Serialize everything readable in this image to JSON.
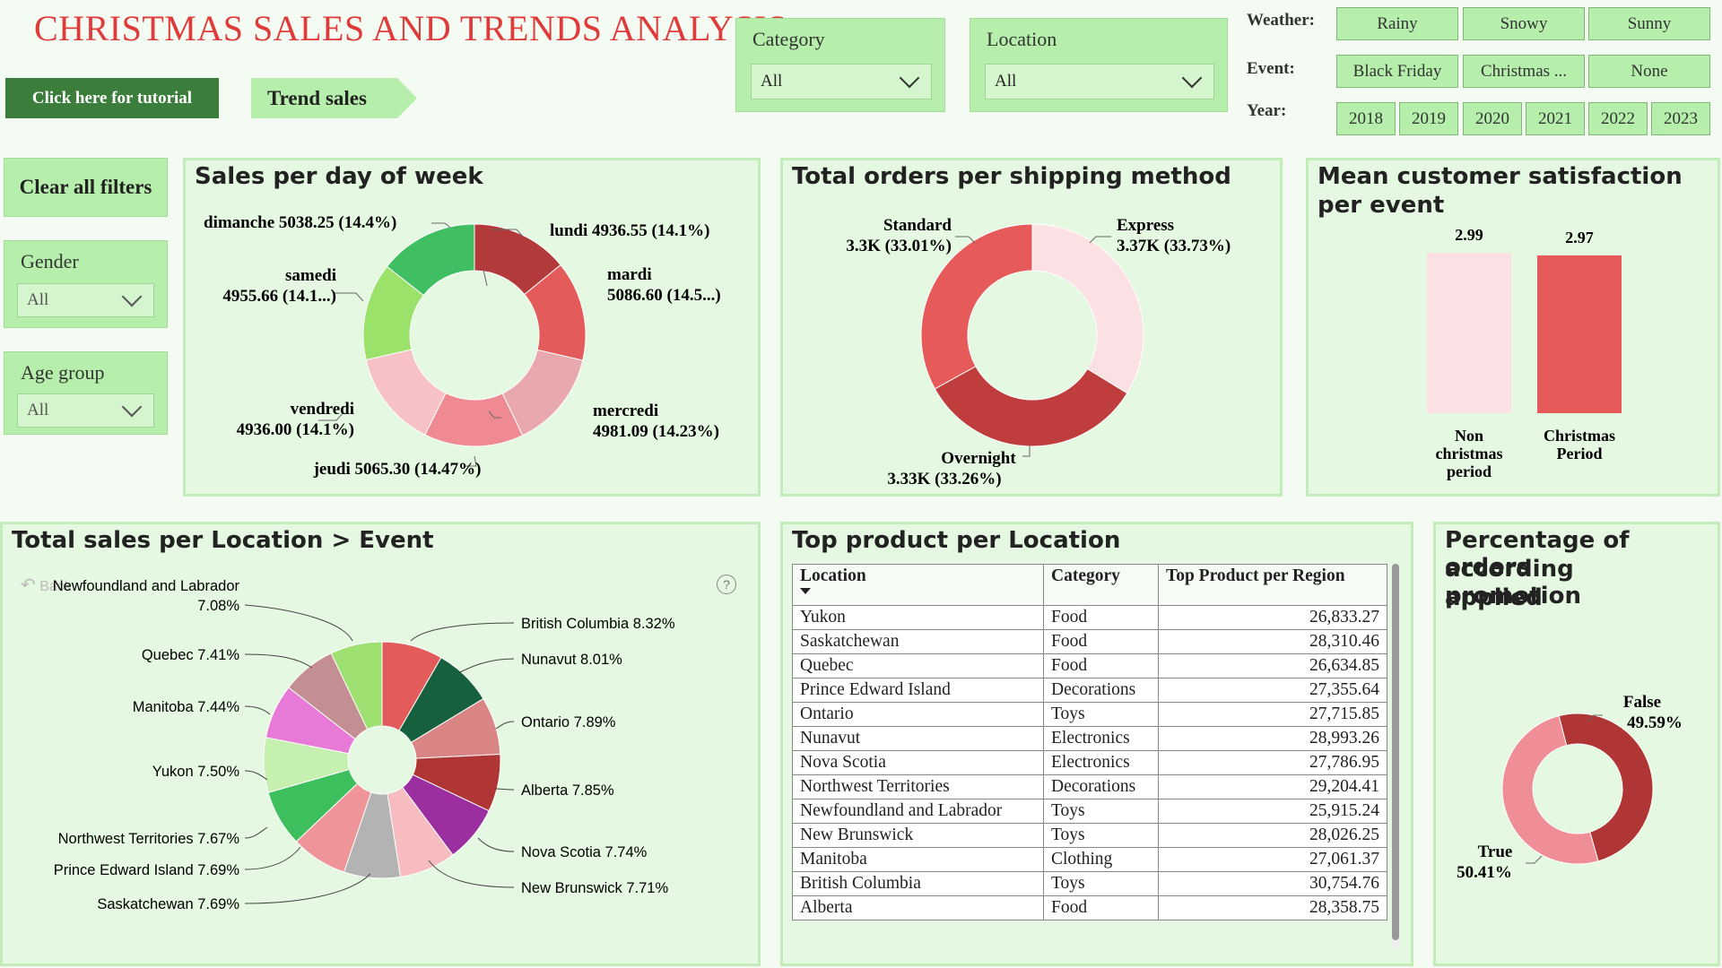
{
  "header": {
    "title": "CHRISTMAS SALES AND TRENDS ANALYSIS",
    "tutorial_label": "Click here for tutorial",
    "trend_label": "Trend sales",
    "clear_label": "Clear all filters"
  },
  "filters": {
    "category": {
      "label": "Category",
      "value": "All"
    },
    "location": {
      "label": "Location",
      "value": "All"
    },
    "gender": {
      "label": "Gender",
      "value": "All"
    },
    "age_group": {
      "label": "Age group",
      "value": "All"
    }
  },
  "slicers": {
    "weather": {
      "label": "Weather:",
      "options": [
        "Rainy",
        "Snowy",
        "Sunny"
      ]
    },
    "event": {
      "label": "Event:",
      "options": [
        "Black Friday",
        "Christmas ...",
        "None"
      ]
    },
    "year": {
      "label": "Year:",
      "options": [
        "2018",
        "2019",
        "2020",
        "2021",
        "2022",
        "2023"
      ]
    }
  },
  "panels": {
    "day_of_week": {
      "title": "Sales per day of week"
    },
    "shipping": {
      "title": "Total orders per shipping method"
    },
    "satisfaction": {
      "title_line1": "Mean customer satisfaction",
      "title_line2": "per event"
    },
    "location_event": {
      "title": "Total sales per Location > Event",
      "back_label": "Back",
      "help_icon": "?"
    },
    "top_product": {
      "title": "Top product per Location"
    },
    "promotion": {
      "title_line1": "Percentage of orders",
      "title_line2": "according promotion",
      "title_line3": "applied"
    }
  },
  "colors": {
    "accent_red": "#e03b3b",
    "panel_bg": "#e5f8e1",
    "slicer_bg": "#b5efab",
    "dark_green": "#3b7d3b"
  },
  "chart_data": [
    {
      "type": "pie",
      "title": "Sales per day of week",
      "donut": true,
      "slices": [
        {
          "label": "lundi",
          "value": 4936.55,
          "text": "lundi 4936.55 (14.1%)",
          "color": "#b23a3a"
        },
        {
          "label": "mardi",
          "value": 5086.6,
          "text_line1": "mardi",
          "text_line2": "5086.60 (14.5...)",
          "color": "#e45b5b"
        },
        {
          "label": "mercredi",
          "value": 4981.09,
          "text_line1": "mercredi",
          "text_line2": "4981.09 (14.23%)",
          "color": "#e8a8ad"
        },
        {
          "label": "jeudi",
          "value": 5065.3,
          "text": "jeudi 5065.30 (14.47%)",
          "color": "#ef8a93"
        },
        {
          "label": "vendredi",
          "value": 4936.0,
          "text_line1": "vendredi",
          "text_line2": "4936.00 (14.1%)",
          "color": "#f6c2c6"
        },
        {
          "label": "samedi",
          "value": 4955.66,
          "text_line1": "samedi",
          "text_line2": "4955.66 (14.1...)",
          "color": "#9be26a"
        },
        {
          "label": "dimanche",
          "value": 5038.25,
          "text": "dimanche 5038.25 (14.4%)",
          "color": "#3fbf62"
        }
      ]
    },
    {
      "type": "pie",
      "title": "Total orders per shipping method",
      "donut": true,
      "slices": [
        {
          "label": "Express",
          "value": 33.73,
          "text_line1": "Express",
          "text_line2": "3.37K (33.73%)",
          "color": "#fbe1e3"
        },
        {
          "label": "Overnight",
          "value": 33.26,
          "text_line1": "Overnight",
          "text_line2": "3.33K (33.26%)",
          "color": "#bf3d3d"
        },
        {
          "label": "Standard",
          "value": 33.01,
          "text_line1": "Standard",
          "text_line2": "3.3K (33.01%)",
          "color": "#e65a5a"
        }
      ]
    },
    {
      "type": "bar",
      "title": "Mean customer satisfaction per event",
      "categories": [
        "Non christmas period",
        "Christmas Period"
      ],
      "category_lines": [
        [
          "Non",
          "christmas",
          "period"
        ],
        [
          "Christmas",
          "Period"
        ]
      ],
      "values": [
        2.99,
        2.97
      ],
      "value_labels": [
        "2.99",
        "2.97"
      ],
      "colors": [
        "#fbe1e3",
        "#e65a5a"
      ],
      "ylim": [
        0,
        3.2
      ]
    },
    {
      "type": "pie",
      "title": "Total sales per Location > Event",
      "donut": true,
      "slices": [
        {
          "label": "British Columbia",
          "value": 8.32,
          "text": "British Columbia 8.32%",
          "color": "#e35b5b"
        },
        {
          "label": "Nunavut",
          "value": 8.01,
          "text": "Nunavut 8.01%",
          "color": "#17603e"
        },
        {
          "label": "Ontario",
          "value": 7.89,
          "text": "Ontario 7.89%",
          "color": "#d98585"
        },
        {
          "label": "Alberta",
          "value": 7.85,
          "text": "Alberta 7.85%",
          "color": "#b03535"
        },
        {
          "label": "Nova Scotia",
          "value": 7.74,
          "text": "Nova Scotia 7.74%",
          "color": "#9b2fa0"
        },
        {
          "label": "New Brunswick",
          "value": 7.71,
          "text": "New Brunswick 7.71%",
          "color": "#f6bcc0"
        },
        {
          "label": "Saskatchewan",
          "value": 7.69,
          "text": "Saskatchewan 7.69%",
          "color": "#b3b3b3"
        },
        {
          "label": "Prince Edward Island",
          "value": 7.69,
          "text": "Prince Edward Island 7.69%",
          "color": "#ef9498"
        },
        {
          "label": "Northwest Territories",
          "value": 7.67,
          "text": "Northwest Territories 7.67%",
          "color": "#3cbf5c"
        },
        {
          "label": "Yukon",
          "value": 7.5,
          "text": "Yukon 7.50%",
          "color": "#c6f0b0"
        },
        {
          "label": "Manitoba",
          "value": 7.44,
          "text": "Manitoba 7.44%",
          "color": "#e67ad6"
        },
        {
          "label": "Quebec",
          "value": 7.41,
          "text": "Quebec 7.41%",
          "color": "#c48f93"
        },
        {
          "label": "Newfoundland and Labrador",
          "value": 7.08,
          "text_line1": "Newfoundland and Labrador",
          "text_line2": "7.08%",
          "color": "#9fe072"
        }
      ]
    },
    {
      "type": "table",
      "title": "Top product per Location",
      "columns": [
        "Location",
        "Category",
        "Top Product per Region"
      ],
      "rows": [
        [
          "Yukon",
          "Food",
          "26,833.27"
        ],
        [
          "Saskatchewan",
          "Food",
          "28,310.46"
        ],
        [
          "Quebec",
          "Food",
          "26,634.85"
        ],
        [
          "Prince Edward Island",
          "Decorations",
          "27,355.64"
        ],
        [
          "Ontario",
          "Toys",
          "27,715.85"
        ],
        [
          "Nunavut",
          "Electronics",
          "28,993.26"
        ],
        [
          "Nova Scotia",
          "Electronics",
          "27,786.95"
        ],
        [
          "Northwest Territories",
          "Decorations",
          "29,204.41"
        ],
        [
          "Newfoundland and Labrador",
          "Toys",
          "25,915.24"
        ],
        [
          "New Brunswick",
          "Toys",
          "28,026.25"
        ],
        [
          "Manitoba",
          "Clothing",
          "27,061.37"
        ],
        [
          "British Columbia",
          "Toys",
          "30,754.76"
        ],
        [
          "Alberta",
          "Food",
          "28,358.75"
        ]
      ]
    },
    {
      "type": "pie",
      "title": "Percentage of orders according promotion applied",
      "donut": true,
      "slices": [
        {
          "label": "False",
          "value": 49.59,
          "text_line1": "False",
          "text_line2": "49.59%",
          "color": "#b03535"
        },
        {
          "label": "True",
          "value": 50.41,
          "text_line1": "True",
          "text_line2": "50.41%",
          "color": "#ef8e96"
        }
      ]
    }
  ]
}
